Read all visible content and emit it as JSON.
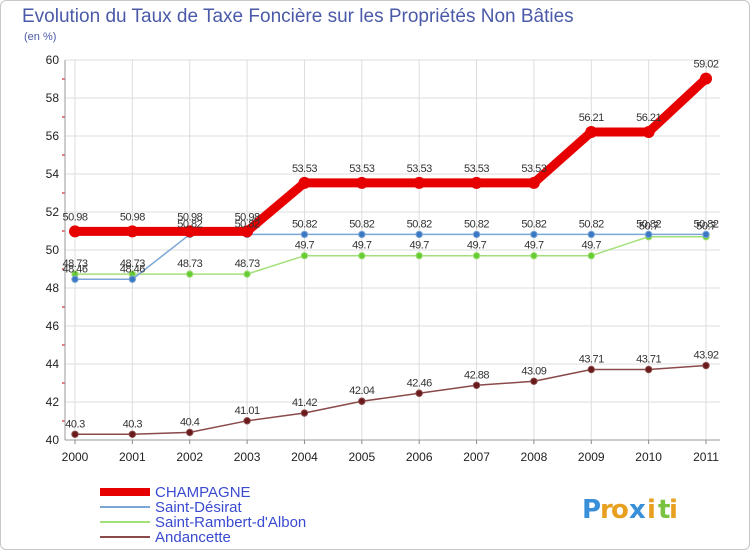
{
  "chart_data": {
    "type": "line",
    "title": "Evolution du Taux de Taxe Foncière sur les Propriétés Non Bâties",
    "subtitle": "(en %)",
    "xlabel": "",
    "ylabel": "",
    "ylim": [
      40,
      60
    ],
    "yticks": [
      "40",
      "42",
      "44",
      "46",
      "48",
      "50",
      "52",
      "54",
      "56",
      "58",
      "60"
    ],
    "ytick_values": [
      40,
      42,
      44,
      46,
      48,
      50,
      52,
      54,
      56,
      58,
      60
    ],
    "grid": true,
    "legend_position": "bottom-left",
    "x": [
      "2000",
      "2001",
      "2002",
      "2003",
      "2004",
      "2005",
      "2006",
      "2007",
      "2008",
      "2009",
      "2010",
      "2011"
    ],
    "series": [
      {
        "name": "CHAMPAGNE",
        "color": "#e60000",
        "values": [
          50.98,
          50.98,
          50.98,
          50.98,
          53.53,
          53.53,
          53.53,
          53.53,
          53.53,
          56.21,
          56.21,
          59.02
        ],
        "labels": [
          "50.98",
          "50.98",
          "50.98",
          "50.98",
          "53.53",
          "53.53",
          "53.53",
          "53.53",
          "53.53",
          "56.21",
          "56.21",
          "59.02"
        ]
      },
      {
        "name": "Saint-Désirat",
        "color": "#7ba7d6",
        "marker_color": "#3a78c4",
        "values": [
          48.46,
          48.46,
          50.82,
          50.82,
          50.82,
          50.82,
          50.82,
          50.82,
          50.82,
          50.82,
          50.82,
          50.82
        ],
        "labels": [
          "48.46",
          "48.46",
          "50.82",
          "50.82",
          "50.82",
          "50.82",
          "50.82",
          "50.82",
          "50.82",
          "50.82",
          "50.82",
          "50.82"
        ]
      },
      {
        "name": "Saint-Rambert-d'Albon",
        "color": "#a4e07a",
        "marker_color": "#66cc33",
        "values": [
          48.73,
          48.73,
          48.73,
          48.73,
          49.7,
          49.7,
          49.7,
          49.7,
          49.7,
          49.7,
          50.7,
          50.7
        ],
        "labels": [
          "48.73",
          "48.73",
          "48.73",
          "48.73",
          "49.7",
          "49.7",
          "49.7",
          "49.7",
          "49.7",
          "49.7",
          "50.7",
          "50.7"
        ]
      },
      {
        "name": "Andancette",
        "color": "#8a4a4a",
        "marker_color": "#6a1a1a",
        "values": [
          40.3,
          40.3,
          40.4,
          41.01,
          41.42,
          42.04,
          42.46,
          42.88,
          43.09,
          43.71,
          43.71,
          43.92
        ],
        "labels": [
          "40.3",
          "40.3",
          "40.4",
          "41.01",
          "41.42",
          "42.04",
          "42.46",
          "42.88",
          "43.09",
          "43.71",
          "43.71",
          "43.92"
        ]
      }
    ]
  },
  "logo": {
    "letters": [
      "P",
      "r",
      "o",
      "x",
      "i",
      "t",
      "i"
    ],
    "colors": [
      "#3a8fd9",
      "#e8a020",
      "#e8a020",
      "#3a8fd9",
      "#e8a020",
      "#7cc242",
      "#e8a020"
    ]
  }
}
